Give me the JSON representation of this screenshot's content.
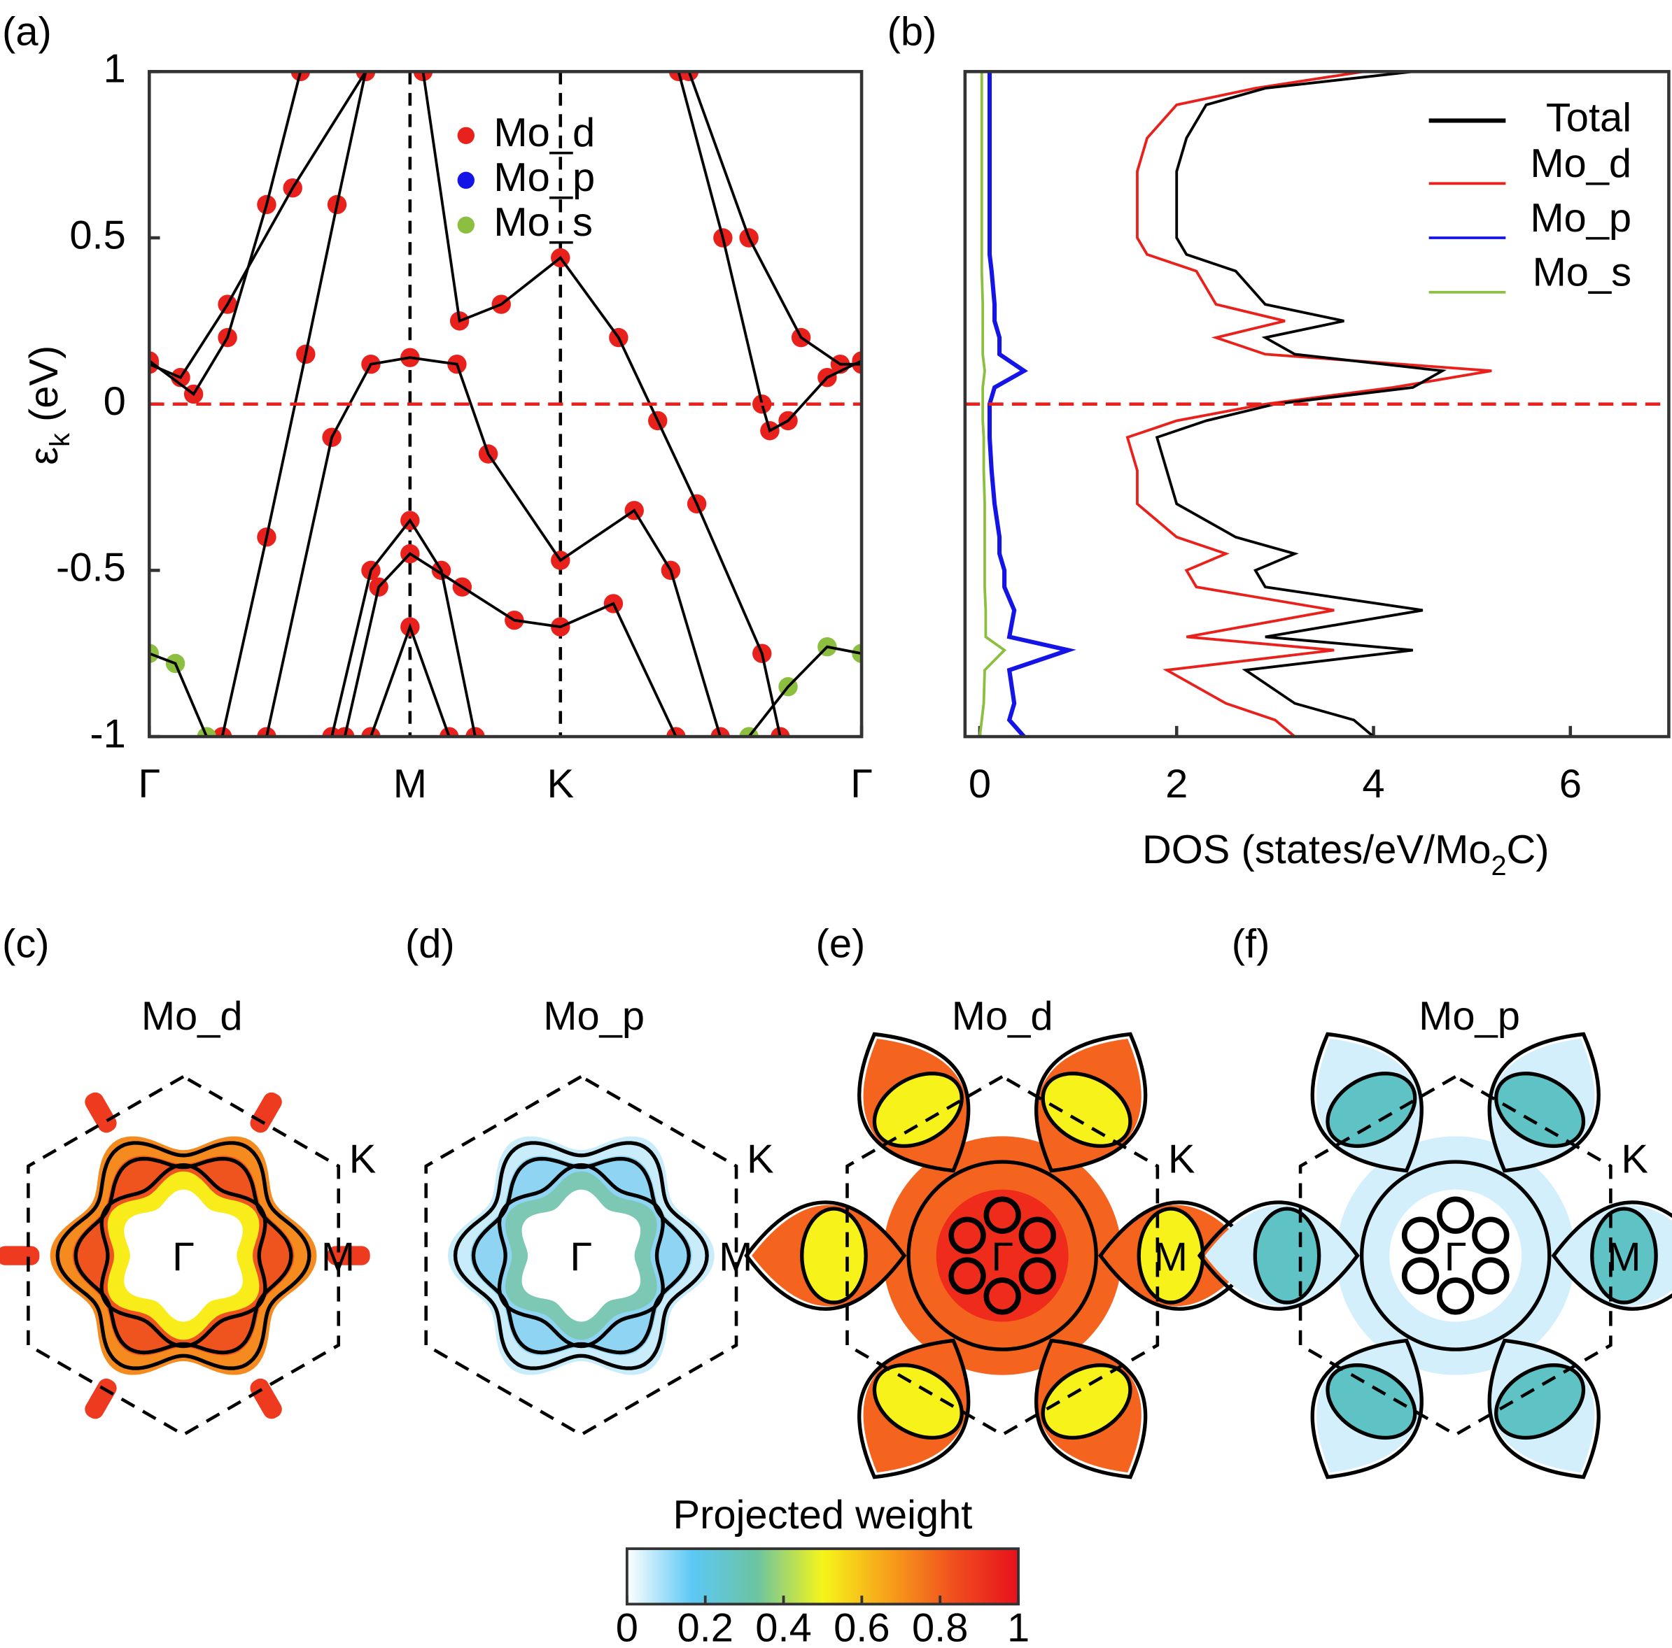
{
  "chart_data": [
    {
      "type": "bands",
      "panel_label": "(a)",
      "ylabel": [
        "ε",
        "k",
        " (eV)"
      ],
      "xlim": [
        0,
        2.732
      ],
      "xticks": [
        {
          "value": 0,
          "label": "Γ"
        },
        {
          "value": 1,
          "label": "M"
        },
        {
          "value": 1.577,
          "label": "K"
        },
        {
          "value": 2.732,
          "label": "Γ"
        }
      ],
      "ylim": [
        -1,
        1
      ],
      "yticks": [
        -1,
        -0.5,
        0,
        0.5,
        1
      ],
      "fermi_level": 0,
      "legend": [
        {
          "name": "Mo_d",
          "color": "#e8211c"
        },
        {
          "name": "Mo_p",
          "color": "#1414e6"
        },
        {
          "name": "Mo_s",
          "color": "#8cbf3f"
        }
      ],
      "bands": [
        {
          "color": "#e8211c",
          "x": [
            0,
            0.17,
            0.3,
            0.45,
            0.58
          ],
          "values": [
            0.13,
            0.03,
            0.2,
            0.6,
            1
          ]
        },
        {
          "color": "#e8211c",
          "x": [
            0,
            0.12,
            0.3,
            0.55,
            0.83
          ],
          "values": [
            0.12,
            0.08,
            0.3,
            0.65,
            1
          ]
        },
        {
          "color": "#e8211c",
          "x": [
            0.28,
            0.45,
            0.6,
            0.72,
            0.83
          ],
          "values": [
            -1,
            -0.4,
            0.15,
            0.6,
            1
          ]
        },
        {
          "color": "#8cbf3f",
          "x": [
            0,
            0.1,
            0.22
          ],
          "values": [
            -0.75,
            -0.78,
            -1
          ]
        },
        {
          "color": "#e8211c",
          "x": [
            0.45,
            0.7,
            0.85,
            1,
            1.18,
            1.3,
            1.577,
            1.86,
            2.0,
            2.19
          ],
          "values": [
            -1,
            -0.1,
            0.12,
            0.14,
            0.12,
            -0.15,
            -0.47,
            -0.32,
            -0.5,
            -1
          ]
        },
        {
          "color": "#e8211c",
          "x": [
            1.05,
            1.19,
            1.35,
            1.577,
            1.8,
            1.95,
            2.1,
            2.35,
            2.42
          ],
          "values": [
            1,
            0.25,
            0.3,
            0.44,
            0.2,
            -0.05,
            -0.3,
            -0.75,
            -1
          ]
        },
        {
          "color": "#e8211c",
          "x": [
            0.7,
            0.85,
            1,
            1.12,
            1.25
          ],
          "values": [
            -1,
            -0.5,
            -0.35,
            -0.5,
            -1
          ]
        },
        {
          "color": "#e8211c",
          "x": [
            0.75,
            0.88,
            1,
            1.2,
            1.4,
            1.577,
            1.78,
            2.02
          ],
          "values": [
            -1,
            -0.55,
            -0.45,
            -0.55,
            -0.65,
            -0.67,
            -0.6,
            -1
          ]
        },
        {
          "color": "#e8211c",
          "x": [
            0.85,
            1,
            1.15
          ],
          "values": [
            -1,
            -0.67,
            -1
          ]
        },
        {
          "color": "#e8211c",
          "x": [
            2.03,
            2.2,
            2.35,
            2.38,
            2.45,
            2.6,
            2.732
          ],
          "values": [
            1,
            0.5,
            0,
            -0.08,
            -0.05,
            0.08,
            0.13
          ]
        },
        {
          "color": "#e8211c",
          "x": [
            2.07,
            2.3,
            2.5,
            2.65,
            2.732
          ],
          "values": [
            1,
            0.5,
            0.2,
            0.12,
            0.12
          ]
        },
        {
          "color": "#8cbf3f",
          "x": [
            2.3,
            2.45,
            2.6,
            2.732
          ],
          "values": [
            -1,
            -0.85,
            -0.73,
            -0.75
          ]
        }
      ]
    },
    {
      "type": "dos",
      "panel_label": "(b)",
      "xlabel": [
        "DOS (states/eV/Mo",
        "2",
        "C)"
      ],
      "xlim": [
        -0.15,
        7
      ],
      "xticks": [
        0,
        2,
        4,
        6
      ],
      "ylim": [
        -1,
        1
      ],
      "fermi_level": 0,
      "legend_loc": "upper right",
      "y": [
        -1,
        -0.95,
        -0.9,
        -0.8,
        -0.74,
        -0.7,
        -0.62,
        -0.55,
        -0.5,
        -0.45,
        -0.4,
        -0.3,
        -0.2,
        -0.1,
        -0.05,
        0,
        0.05,
        0.1,
        0.15,
        0.2,
        0.25,
        0.3,
        0.4,
        0.45,
        0.5,
        0.6,
        0.7,
        0.8,
        0.9,
        0.95,
        1
      ],
      "series": [
        {
          "name": "Total",
          "color": "#000000",
          "values": [
            4.0,
            3.8,
            3.2,
            2.7,
            4.4,
            2.9,
            4.5,
            2.9,
            2.8,
            3.2,
            2.6,
            2.0,
            1.9,
            1.8,
            2.3,
            3.0,
            4.4,
            4.7,
            3.2,
            2.9,
            3.7,
            2.9,
            2.6,
            2.1,
            2.0,
            2.0,
            2.0,
            2.1,
            2.3,
            2.9,
            4.4
          ]
        },
        {
          "name": "Mo_d",
          "color": "#e8211c",
          "values": [
            3.2,
            3.0,
            2.5,
            1.9,
            3.6,
            2.1,
            3.6,
            2.2,
            2.1,
            2.5,
            2.0,
            1.6,
            1.6,
            1.5,
            2.0,
            2.9,
            4.2,
            5.2,
            2.9,
            2.4,
            3.1,
            2.4,
            2.2,
            1.7,
            1.6,
            1.6,
            1.6,
            1.7,
            2.0,
            2.8,
            3.9
          ]
        },
        {
          "name": "Mo_p",
          "color": "#1414e6",
          "values": [
            0.45,
            0.3,
            0.35,
            0.3,
            0.9,
            0.3,
            0.35,
            0.25,
            0.25,
            0.2,
            0.2,
            0.15,
            0.12,
            0.1,
            0.1,
            0.1,
            0.15,
            0.45,
            0.2,
            0.2,
            0.15,
            0.15,
            0.12,
            0.1,
            0.1,
            0.1,
            0.1,
            0.1,
            0.1,
            0.1,
            0.1
          ]
        },
        {
          "name": "Mo_s",
          "color": "#8cbf3f",
          "values": [
            0.0,
            0.02,
            0.04,
            0.05,
            0.25,
            0.06,
            0.06,
            0.05,
            0.05,
            0.05,
            0.05,
            0.05,
            0.04,
            0.04,
            0.03,
            0.03,
            0.03,
            0.05,
            0.03,
            0.03,
            0.03,
            0.03,
            0.02,
            0.02,
            0.02,
            0.02,
            0.02,
            0.02,
            0.02,
            0.02,
            0.02
          ]
        }
      ]
    },
    {
      "type": "colorbar",
      "title": "Projected weight",
      "xlim": [
        0,
        1
      ],
      "xticks": [
        0,
        0.2,
        0.4,
        0.6,
        0.8,
        1
      ],
      "colors": [
        "#ffffff",
        "#5cc8f5",
        "#6cc4a0",
        "#f5f51a",
        "#f7a11a",
        "#f0501e",
        "#e8101c"
      ]
    }
  ],
  "fermi_panels": [
    {
      "panel_label": "(c)",
      "title": "Mo_d",
      "points": [
        "Γ",
        "M",
        "K"
      ]
    },
    {
      "panel_label": "(d)",
      "title": "Mo_p",
      "points": [
        "Γ",
        "M",
        "K"
      ]
    },
    {
      "panel_label": "(e)",
      "title": "Mo_d",
      "points": [
        "Γ",
        "M",
        "K"
      ]
    },
    {
      "panel_label": "(f)",
      "title": "Mo_p",
      "points": [
        "Γ",
        "M",
        "K"
      ]
    }
  ]
}
